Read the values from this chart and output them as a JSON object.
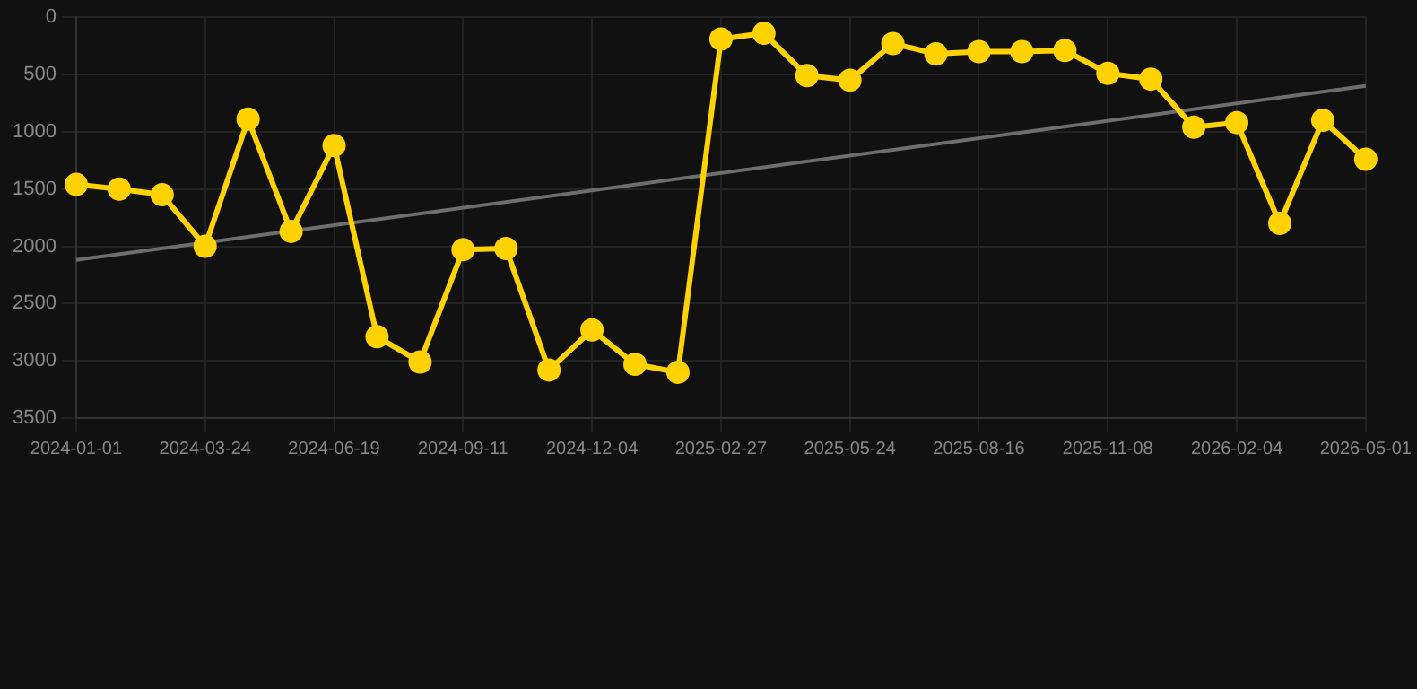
{
  "chart_data": {
    "type": "line",
    "categories": [
      "2024-01-01",
      null,
      null,
      "2024-03-24",
      null,
      null,
      "2024-06-19",
      null,
      null,
      "2024-09-11",
      null,
      null,
      "2024-12-04",
      null,
      null,
      "2025-02-27",
      null,
      null,
      "2025-05-24",
      null,
      null,
      "2025-08-16",
      null,
      null,
      "2025-11-08",
      null,
      null,
      "2026-02-04",
      null,
      null,
      "2026-05-01"
    ],
    "series": [
      {
        "color": "#ffd200",
        "values": [
          1460,
          1500,
          1550,
          2000,
          890,
          1870,
          1120,
          2790,
          3010,
          2030,
          2020,
          3080,
          2730,
          3030,
          3100,
          190,
          140,
          510,
          550,
          230,
          320,
          300,
          300,
          290,
          490,
          540,
          960,
          920,
          1800,
          900,
          1240
        ],
        "marker": "circle"
      },
      {
        "type": "line",
        "color": "#6e6e6e",
        "values": [
          2120,
          null,
          null,
          null,
          null,
          null,
          null,
          null,
          null,
          null,
          null,
          null,
          null,
          null,
          null,
          null,
          null,
          null,
          null,
          null,
          null,
          null,
          null,
          null,
          null,
          null,
          null,
          null,
          null,
          null,
          600
        ],
        "marker": "none"
      }
    ],
    "ylim": [
      3500,
      0
    ],
    "yticks": [
      0,
      500,
      1000,
      1500,
      2000,
      2500,
      3000,
      3500
    ],
    "grid": true,
    "legend": false
  }
}
